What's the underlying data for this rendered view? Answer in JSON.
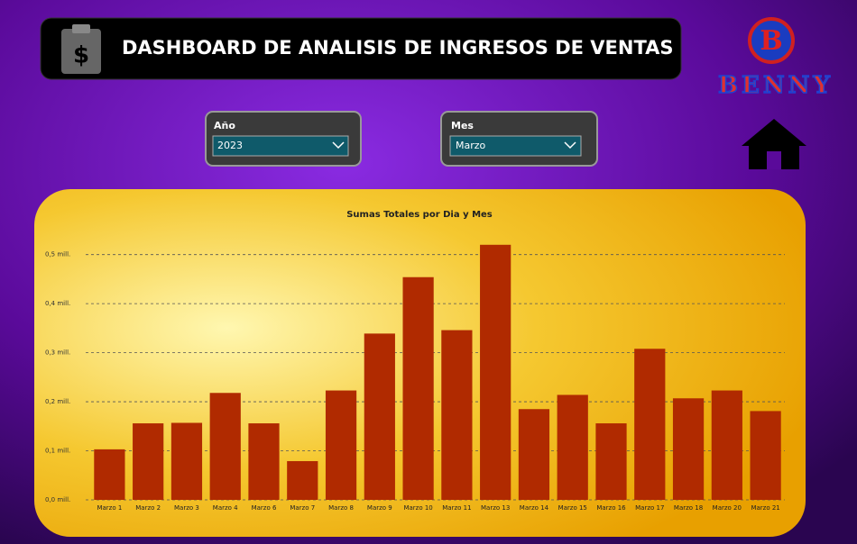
{
  "header": {
    "title": "DASHBOARD DE ANALISIS DE INGRESOS DE VENTAS"
  },
  "logo": {
    "letter": "B",
    "name": "BENNY"
  },
  "filters": [
    {
      "label": "Año",
      "value": "2023"
    },
    {
      "label": "Mes",
      "value": "Marzo"
    }
  ],
  "chart_data": {
    "type": "bar",
    "title": "Sumas Totales por Dia y Mes",
    "categories": [
      "Marzo 1",
      "Marzo 2",
      "Marzo 3",
      "Marzo 4",
      "Marzo 6",
      "Marzo 7",
      "Marzo 8",
      "Marzo 9",
      "Marzo 10",
      "Marzo 11",
      "Marzo 13",
      "Marzo 14",
      "Marzo 15",
      "Marzo 16",
      "Marzo 17",
      "Marzo 18",
      "Marzo 20",
      "Marzo 21"
    ],
    "values": [
      0.103,
      0.156,
      0.157,
      0.218,
      0.156,
      0.079,
      0.223,
      0.339,
      0.454,
      0.346,
      0.52,
      0.185,
      0.214,
      0.156,
      0.308,
      0.207,
      0.223,
      0.181
    ],
    "color": "#b02a00",
    "ylim": [
      0,
      0.56
    ],
    "yticks": [
      {
        "value": 0,
        "label": "0,0 mill."
      },
      {
        "value": 0.1,
        "label": "0,1 mill."
      },
      {
        "value": 0.2,
        "label": "0,2 mill."
      },
      {
        "value": 0.3,
        "label": "0,3 mill."
      },
      {
        "value": 0.4,
        "label": "0,4 mill."
      },
      {
        "value": 0.5,
        "label": "0,5 mill."
      }
    ],
    "grid": true
  }
}
